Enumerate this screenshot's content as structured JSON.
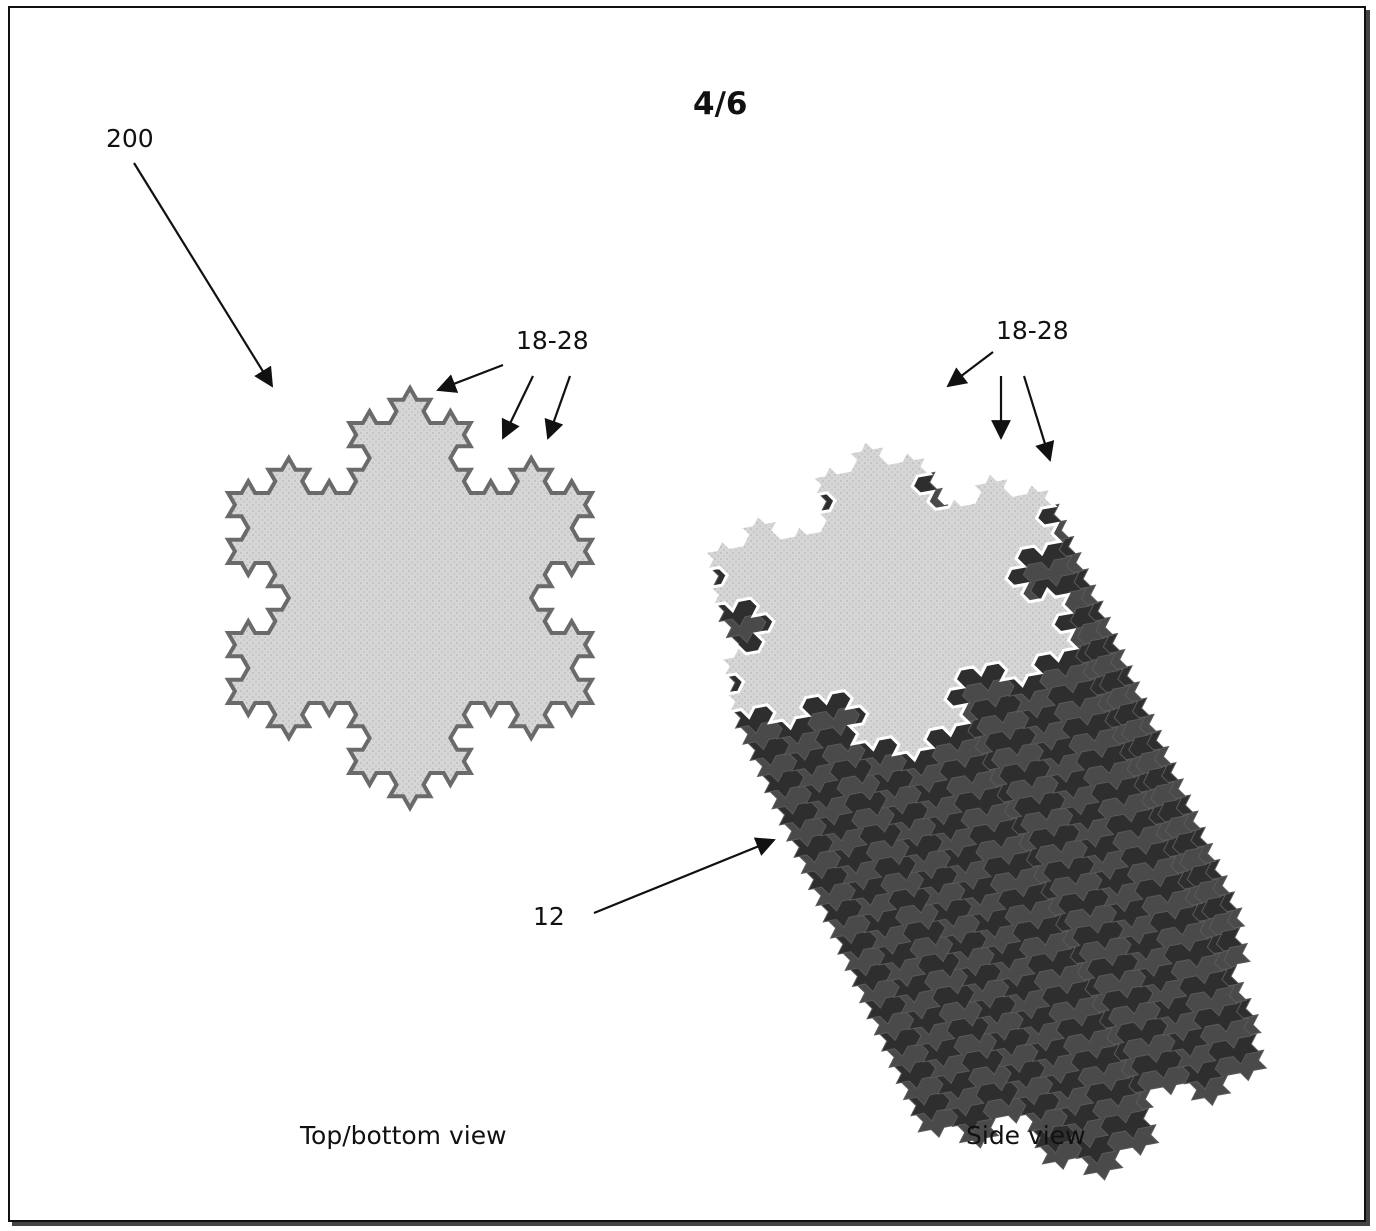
{
  "sheet": {
    "page_number": "4/6"
  },
  "labels": {
    "ref_200": "200",
    "ref_top": "18-28",
    "ref_side": "18-28",
    "ref_12": "12"
  },
  "captions": {
    "top_view": "Top/bottom view",
    "side_view": "Side view"
  },
  "colors": {
    "face_fill": "#d4d4d4",
    "face_edge": "#6a6a6a",
    "prism_dark": "#2e2e2e",
    "prism_mid": "#4a4a4a",
    "ink": "#111111"
  }
}
